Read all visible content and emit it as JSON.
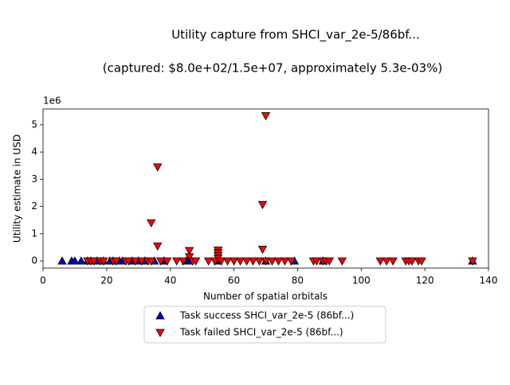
{
  "chart_data": {
    "type": "scatter",
    "title": "Utility capture from SHCI_var_2e-5/86bf...",
    "subtitle": "(captured: $8.0e+02/1.5e+07, approximately 5.3e-03%)",
    "x_label": "Number of spatial orbitals",
    "y_label": "Utility estimate in USD",
    "y_offset_label": "1e6",
    "xlim": [
      0,
      140
    ],
    "xticks": [
      0,
      20,
      40,
      60,
      80,
      100,
      120,
      140
    ],
    "ylim": [
      -0.26,
      5.58
    ],
    "yticks": [
      0,
      1,
      2,
      3,
      4,
      5
    ],
    "grid": false,
    "legend": "below",
    "series": [
      {
        "name": "Task success SHCI_var_2e-5 (86bf...)",
        "color": "#0000cc",
        "marker": "triangle-up",
        "x": [
          6,
          9,
          10,
          12,
          14,
          15,
          17,
          19,
          21,
          22,
          24,
          25,
          28,
          30,
          32,
          35,
          38,
          45,
          46,
          55,
          70,
          79,
          88,
          135
        ],
        "values": [
          0,
          0,
          0,
          0,
          0,
          0,
          0,
          0,
          0,
          0,
          0,
          0,
          0,
          0,
          0,
          0,
          0,
          0,
          0,
          0,
          0,
          0,
          0,
          0
        ]
      },
      {
        "name": "Task failed SHCI_var_2e-5 (86bf...)",
        "color": "#ff0000",
        "marker": "triangle-down",
        "x": [
          14,
          15,
          16,
          18,
          19,
          22,
          23,
          26,
          27,
          29,
          31,
          33,
          34,
          34,
          36,
          36,
          37,
          39,
          42,
          44,
          46,
          46,
          47,
          48,
          52,
          54,
          55,
          55,
          55,
          55,
          56,
          58,
          60,
          62,
          64,
          66,
          68,
          69,
          69,
          70,
          70,
          72,
          74,
          76,
          78,
          85,
          86,
          88,
          89,
          90,
          94,
          106,
          108,
          110,
          114,
          115,
          116,
          118,
          119,
          135
        ],
        "values": [
          0,
          0,
          0,
          0,
          0,
          0,
          0,
          0,
          0,
          0,
          0,
          0,
          0,
          1.4,
          3.45,
          0.55,
          0,
          0,
          0,
          0,
          0.38,
          0.15,
          0,
          0,
          0,
          0,
          0.4,
          0.3,
          0.2,
          0.1,
          0,
          0,
          0,
          0,
          0,
          0,
          0,
          2.07,
          0.43,
          5.33,
          0,
          0,
          0,
          0,
          0,
          0,
          0,
          0,
          0,
          0,
          0,
          0,
          0,
          0,
          0,
          0,
          0,
          0,
          0,
          0
        ]
      }
    ]
  }
}
